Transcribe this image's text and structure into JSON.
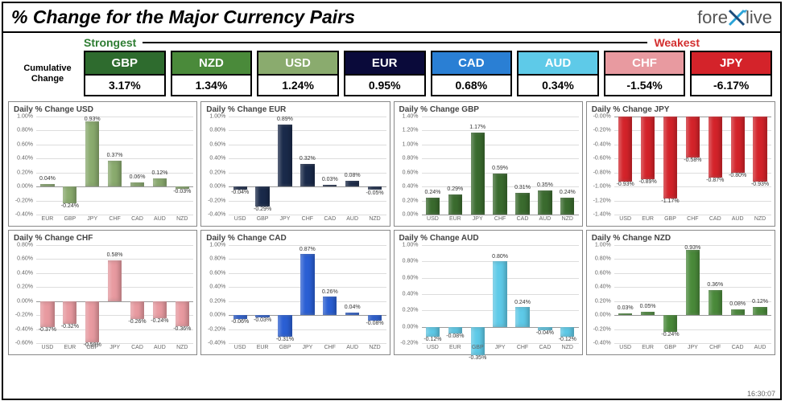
{
  "title": "% Change for the Major Currency Pairs",
  "logo": {
    "pre": "fore",
    "post": "live"
  },
  "spectrum": {
    "strongest": "Strongest",
    "weakest": "Weakest",
    "strongest_color": "#2e7d32",
    "weakest_color": "#d32f2f"
  },
  "cumulative_label": "Cumulative Change",
  "timestamp": "16:30:07",
  "ranking": [
    {
      "code": "GBP",
      "value": "3.17%",
      "color": "#2e6b2e"
    },
    {
      "code": "NZD",
      "value": "1.34%",
      "color": "#4a8a3a"
    },
    {
      "code": "USD",
      "value": "1.24%",
      "color": "#8aab6e"
    },
    {
      "code": "EUR",
      "value": "0.95%",
      "color": "#0a0a3a"
    },
    {
      "code": "CAD",
      "value": "0.68%",
      "color": "#2a7fd4"
    },
    {
      "code": "AUD",
      "value": "0.34%",
      "color": "#5ecae8"
    },
    {
      "code": "CHF",
      "value": "-1.54%",
      "color": "#e89aa0"
    },
    {
      "code": "JPY",
      "value": "-6.17%",
      "color": "#d4232a"
    }
  ],
  "charts": [
    {
      "title": "Daily % Change USD",
      "color": "#8aab6e",
      "ymin": -0.4,
      "ymax": 1.0,
      "ystep": 0.2,
      "cats": [
        "EUR",
        "GBP",
        "JPY",
        "CHF",
        "CAD",
        "AUD",
        "NZD"
      ],
      "vals": [
        0.04,
        -0.24,
        0.93,
        0.37,
        0.06,
        0.12,
        -0.03
      ]
    },
    {
      "title": "Daily % Change EUR",
      "color": "#1a2a4a",
      "ymin": -0.4,
      "ymax": 1.0,
      "ystep": 0.2,
      "cats": [
        "USD",
        "GBP",
        "JPY",
        "CHF",
        "CAD",
        "AUD",
        "NZD"
      ],
      "vals": [
        -0.04,
        -0.29,
        0.89,
        0.32,
        0.03,
        0.08,
        -0.05
      ]
    },
    {
      "title": "Daily % Change GBP",
      "color": "#3a6b2e",
      "ymin": 0.0,
      "ymax": 1.4,
      "ystep": 0.2,
      "cats": [
        "USD",
        "EUR",
        "JPY",
        "CHF",
        "CAD",
        "AUD",
        "NZD"
      ],
      "vals": [
        0.24,
        0.29,
        1.17,
        0.59,
        0.31,
        0.35,
        0.24
      ]
    },
    {
      "title": "Daily % Change JPY",
      "color": "#d4232a",
      "ymin": -1.4,
      "ymax": 0.0,
      "ystep": 0.2,
      "cats": [
        "USD",
        "EUR",
        "GBP",
        "CHF",
        "CAD",
        "AUD",
        "NZD"
      ],
      "vals": [
        -0.93,
        -0.89,
        -1.17,
        -0.58,
        -0.87,
        -0.8,
        -0.93
      ]
    },
    {
      "title": "Daily % Change CHF",
      "color": "#e89aa0",
      "ymin": -0.6,
      "ymax": 0.8,
      "ystep": 0.2,
      "cats": [
        "USD",
        "EUR",
        "GBP",
        "JPY",
        "CAD",
        "AUD",
        "NZD"
      ],
      "vals": [
        -0.37,
        -0.32,
        -0.59,
        0.58,
        -0.26,
        -0.24,
        -0.36
      ]
    },
    {
      "title": "Daily % Change CAD",
      "color": "#2a5fd4",
      "ymin": -0.4,
      "ymax": 1.0,
      "ystep": 0.2,
      "cats": [
        "USD",
        "EUR",
        "GBP",
        "JPY",
        "CHF",
        "AUD",
        "NZD"
      ],
      "vals": [
        -0.06,
        -0.03,
        -0.31,
        0.87,
        0.26,
        0.04,
        -0.08
      ]
    },
    {
      "title": "Daily % Change AUD",
      "color": "#5ecae8",
      "ymin": -0.2,
      "ymax": 1.0,
      "ystep": 0.2,
      "cats": [
        "USD",
        "EUR",
        "GBP",
        "JPY",
        "CHF",
        "CAD",
        "NZD"
      ],
      "vals": [
        -0.12,
        -0.08,
        -0.35,
        0.8,
        0.24,
        -0.04,
        -0.12
      ]
    },
    {
      "title": "Daily % Change NZD",
      "color": "#4a8a3a",
      "ymin": -0.4,
      "ymax": 1.0,
      "ystep": 0.2,
      "cats": [
        "USD",
        "EUR",
        "GBP",
        "JPY",
        "CHF",
        "CAD",
        "AUD"
      ],
      "vals": [
        0.03,
        0.05,
        -0.24,
        0.93,
        0.36,
        0.08,
        0.12
      ]
    }
  ],
  "label_fontsize": 7,
  "tick_fontsize": 7
}
